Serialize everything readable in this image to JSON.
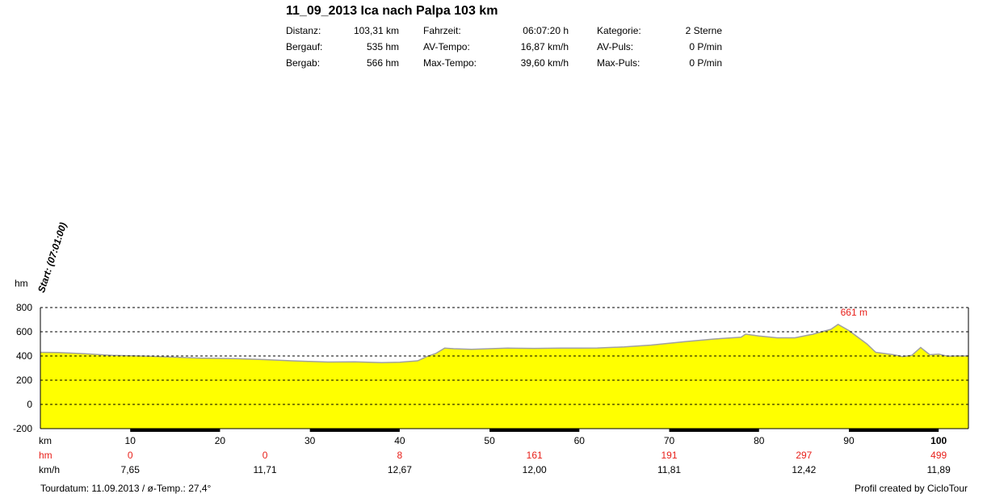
{
  "title": "11_09_2013 Ica nach Palpa 103 km",
  "stats": [
    [
      {
        "label": "Distanz:",
        "value": "103,31 km"
      },
      {
        "label": "Bergauf:",
        "value": "535 hm"
      },
      {
        "label": "Bergab:",
        "value": "566 hm"
      }
    ],
    [
      {
        "label": "Fahrzeit:",
        "value": "06:07:20 h"
      },
      {
        "label": "AV-Tempo:",
        "value": "16,87 km/h"
      },
      {
        "label": "Max-Tempo:",
        "value": "39,60 km/h"
      }
    ],
    [
      {
        "label": "Kategorie:",
        "value": "2 Sterne"
      },
      {
        "label": "AV-Puls:",
        "value": "0 P/min"
      },
      {
        "label": "Max-Puls:",
        "value": "0 P/min"
      }
    ]
  ],
  "start_label": "Start: (07:01:00)",
  "footer_left": "Tourdatum: 11.09.2013  /  ø-Temp.: 27,4°",
  "footer_right": "Profil created by CicloTour",
  "colors": {
    "fill": "#ffff00",
    "outline": "#a0a0a0",
    "red": "#e8201a"
  },
  "chart_data": {
    "type": "area",
    "xlabel": "km",
    "ylabel": "hm",
    "xlim": [
      0,
      103.31
    ],
    "ylim": [
      -200,
      800
    ],
    "yticks": [
      800,
      600,
      400,
      200,
      0,
      -200
    ],
    "xticks": [
      10,
      20,
      30,
      40,
      50,
      60,
      70,
      80,
      90,
      100
    ],
    "grid": "horizontal-dashed",
    "max_annotation": {
      "x": 88.8,
      "y": 661,
      "label": "661 m"
    },
    "x": [
      0,
      2,
      5,
      8,
      10,
      12,
      15,
      18,
      20,
      22,
      25,
      28,
      30,
      32,
      35,
      38,
      40,
      42,
      43,
      44,
      45,
      46,
      48,
      50,
      52,
      55,
      58,
      60,
      62,
      65,
      68,
      70,
      72,
      75,
      78,
      78.5,
      80,
      82,
      84,
      86,
      88,
      88.8,
      90,
      92,
      93,
      94,
      95,
      96,
      97,
      98,
      99,
      100,
      101,
      102,
      103.31
    ],
    "y": [
      430,
      428,
      418,
      405,
      402,
      398,
      390,
      382,
      380,
      377,
      370,
      360,
      355,
      350,
      352,
      345,
      348,
      360,
      395,
      420,
      465,
      460,
      455,
      460,
      465,
      463,
      465,
      465,
      466,
      475,
      490,
      505,
      520,
      540,
      555,
      580,
      565,
      550,
      550,
      580,
      620,
      661,
      610,
      500,
      430,
      420,
      410,
      395,
      405,
      470,
      410,
      415,
      398,
      400,
      400
    ],
    "speed_label": "km/h",
    "elev_label": "hm",
    "segments": [
      {
        "center": 10,
        "hm": "0",
        "kmh": "7,65"
      },
      {
        "center": 25,
        "hm": "0",
        "kmh": "11,71"
      },
      {
        "center": 40,
        "hm": "8",
        "kmh": "12,67"
      },
      {
        "center": 55,
        "hm": "161",
        "kmh": "12,00"
      },
      {
        "center": 70,
        "hm": "191",
        "kmh": "11,81"
      },
      {
        "center": 85,
        "hm": "297",
        "kmh": "12,42"
      },
      {
        "center": 100,
        "hm": "499",
        "kmh": "11,89"
      }
    ]
  }
}
